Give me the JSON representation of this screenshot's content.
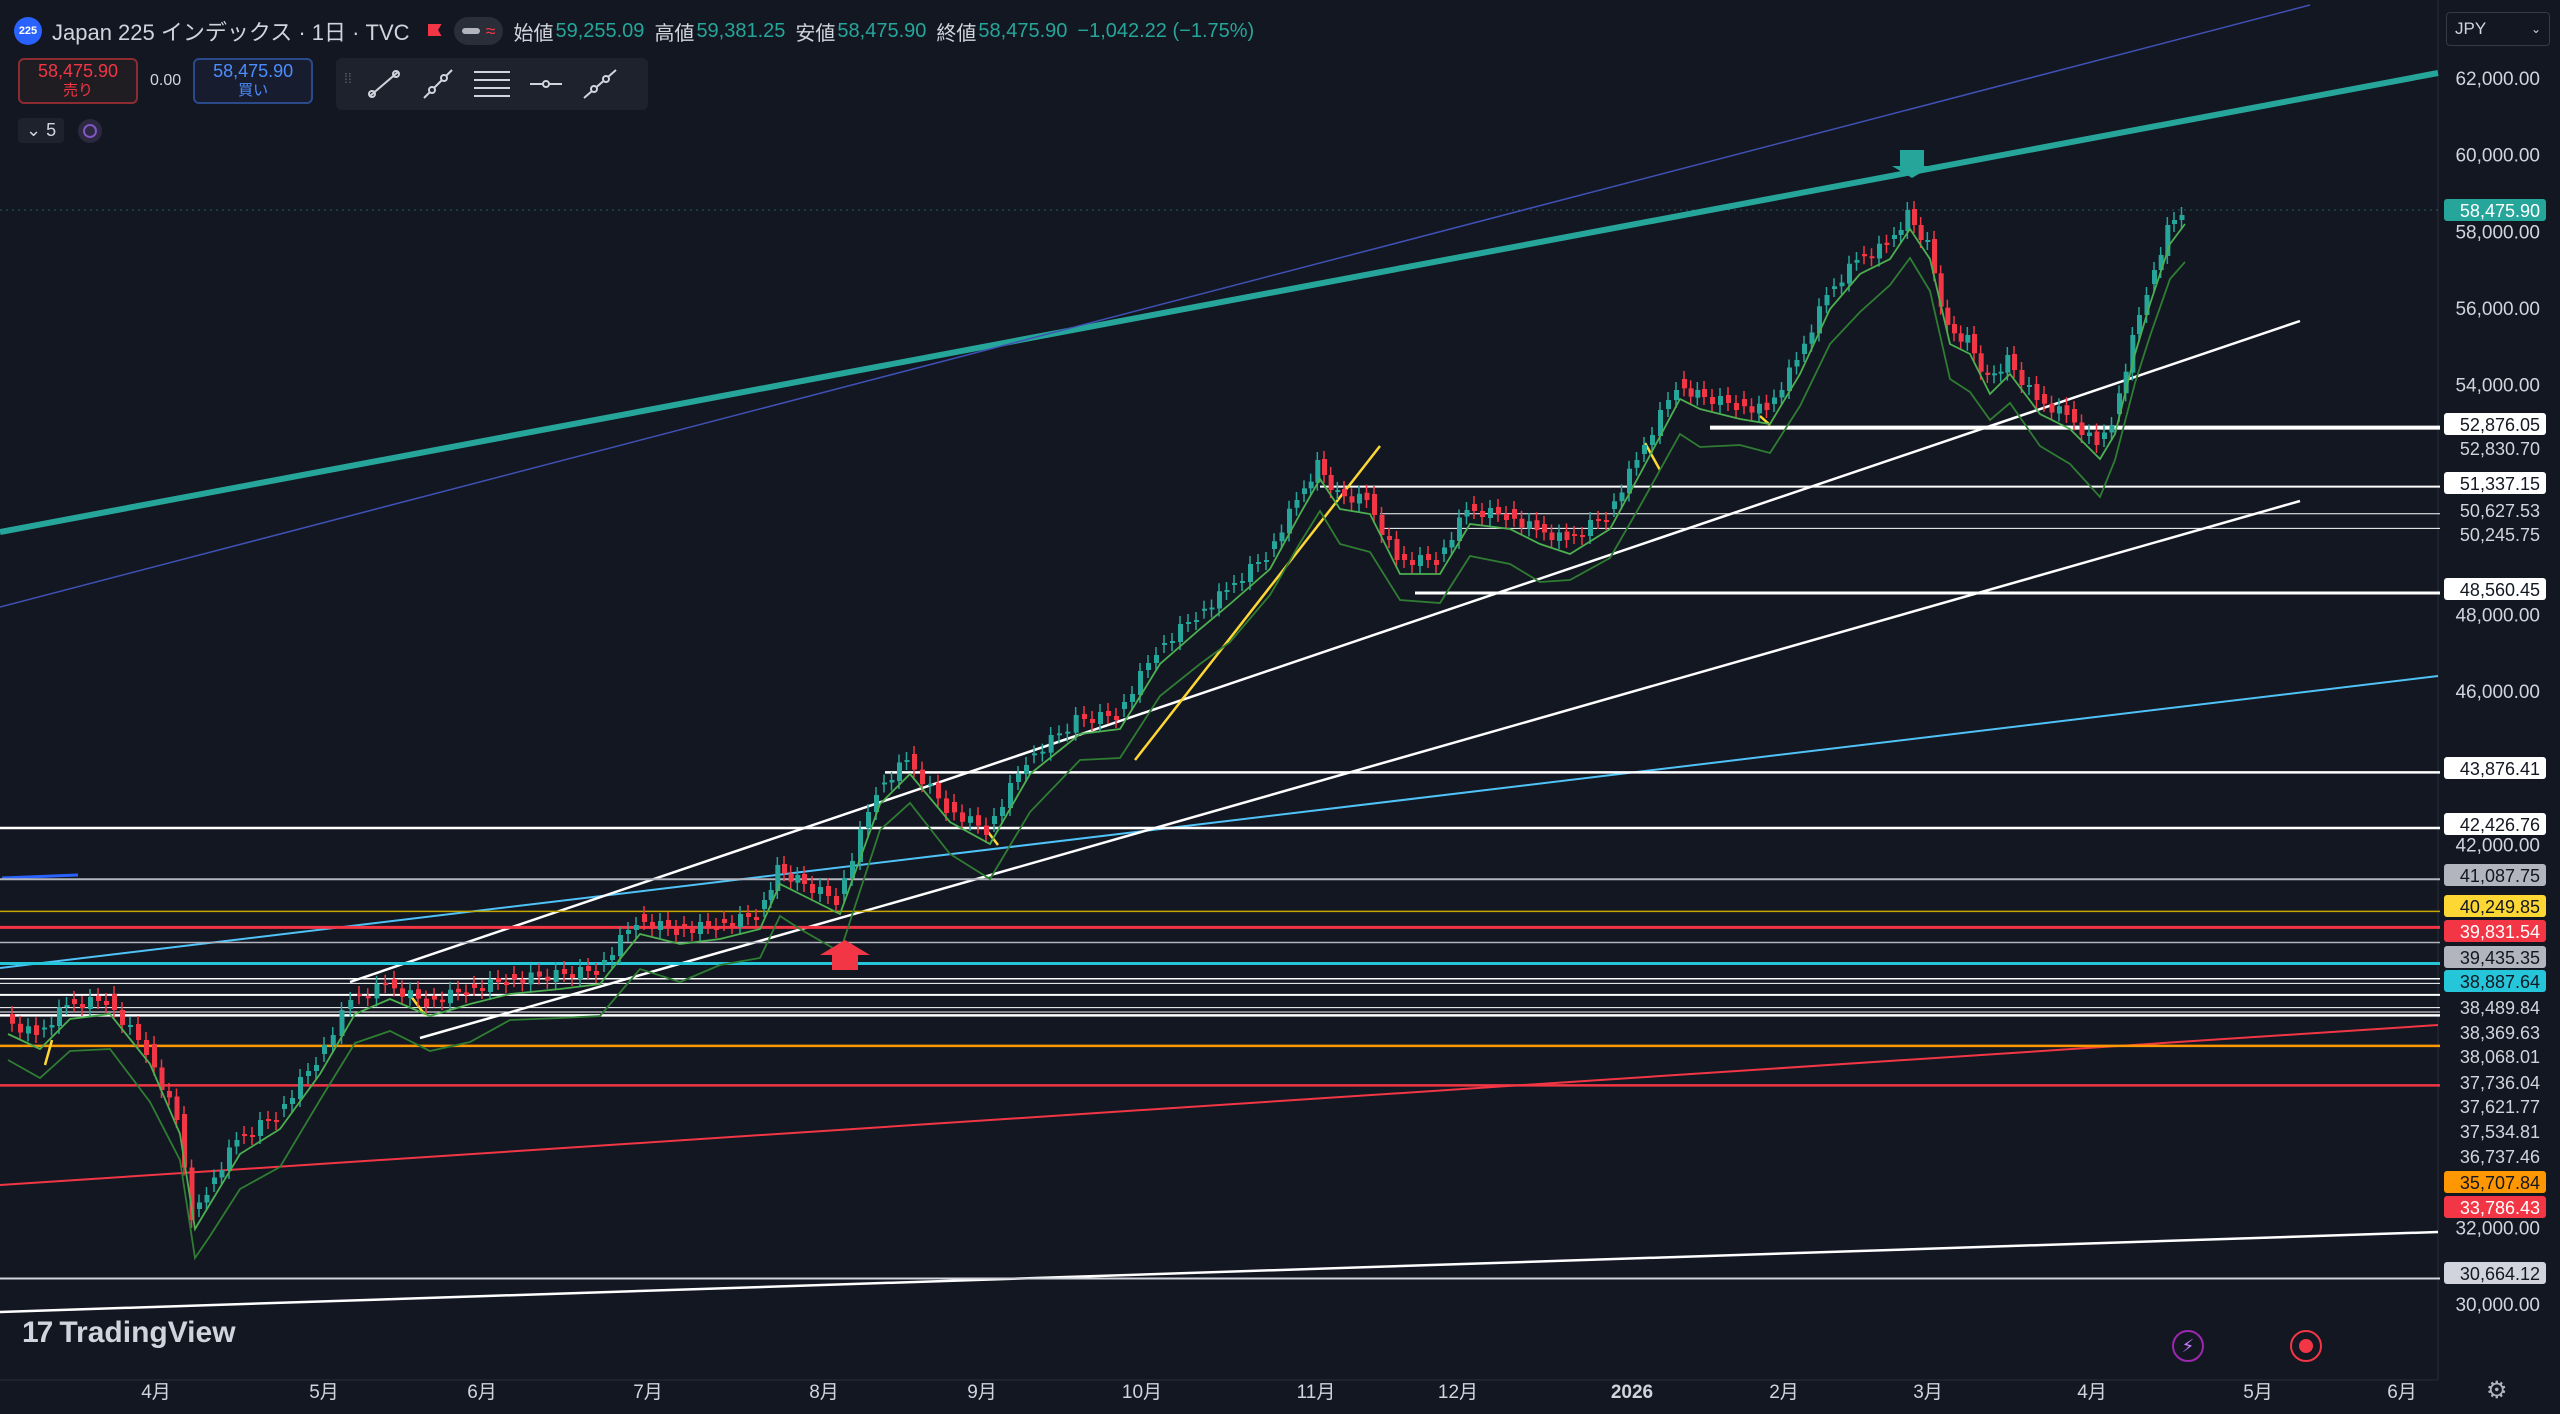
{
  "header": {
    "symbol_badge": "225",
    "title": "Japan 225 インデックス · 1日 · TVC",
    "open_label": "始値",
    "open": "59,255.09",
    "high_label": "高値",
    "high": "59,381.25",
    "low_label": "安値",
    "low": "58,475.90",
    "close_label": "終値",
    "close": "58,475.90",
    "change": "−1,042.22 (−1.75%)",
    "change_color": "#26a69a"
  },
  "trade": {
    "sell_price": "58,475.90",
    "sell_label": "売り",
    "spread": "0.00",
    "buy_price": "58,475.90",
    "buy_label": "買い"
  },
  "toolbar": {
    "tools": [
      "trend-line-icon",
      "ray-icon",
      "fib-retracement-icon",
      "horizontal-line-icon",
      "extended-line-icon"
    ]
  },
  "indicators": {
    "count": "5"
  },
  "currency": {
    "value": "JPY"
  },
  "price_axis": {
    "ticks": [
      "62,000.00",
      "60,000.00",
      "58,000.00",
      "56,000.00",
      "54,000.00",
      "48,000.00",
      "46,000.00",
      "42,000.00",
      "32,000.00",
      "30,000.00"
    ]
  },
  "price_labels": [
    {
      "value": "58,475.90",
      "bg": "#26a69a",
      "fg": "#ffffff"
    },
    {
      "value": "52,876.05",
      "bg": "#ffffff",
      "fg": "#131722"
    },
    {
      "value": "52,830.70",
      "bg": "#131722",
      "fg": "#d1d4dc"
    },
    {
      "value": "51,337.15",
      "bg": "#ffffff",
      "fg": "#131722"
    },
    {
      "value": "50,627.53",
      "bg": "#131722",
      "fg": "#d1d4dc"
    },
    {
      "value": "50,245.75",
      "bg": "#131722",
      "fg": "#d1d4dc"
    },
    {
      "value": "48,560.45",
      "bg": "#ffffff",
      "fg": "#131722"
    },
    {
      "value": "43,876.41",
      "bg": "#ffffff",
      "fg": "#131722"
    },
    {
      "value": "42,426.76",
      "bg": "#ffffff",
      "fg": "#131722"
    },
    {
      "value": "41,087.75",
      "bg": "#b2b5be",
      "fg": "#131722"
    },
    {
      "value": "40,249.85",
      "bg": "#fdd835",
      "fg": "#131722"
    },
    {
      "value": "39,831.54",
      "bg": "#f23645",
      "fg": "#ffffff"
    },
    {
      "value": "39,435.35",
      "bg": "#b2b5be",
      "fg": "#131722"
    },
    {
      "value": "38,887.64",
      "bg": "#26c6da",
      "fg": "#131722"
    },
    {
      "value": "38,489.84",
      "bg": "#131722",
      "fg": "#d1d4dc"
    },
    {
      "value": "38,369.63",
      "bg": "#131722",
      "fg": "#d1d4dc"
    },
    {
      "value": "38,068.01",
      "bg": "#131722",
      "fg": "#d1d4dc"
    },
    {
      "value": "37,736.04",
      "bg": "#131722",
      "fg": "#d1d4dc"
    },
    {
      "value": "37,621.77",
      "bg": "#131722",
      "fg": "#d1d4dc"
    },
    {
      "value": "37,534.81",
      "bg": "#131722",
      "fg": "#d1d4dc"
    },
    {
      "value": "36,737.46",
      "bg": "#131722",
      "fg": "#d1d4dc"
    },
    {
      "value": "35,707.84",
      "bg": "#ff9800",
      "fg": "#131722"
    },
    {
      "value": "33,786.43",
      "bg": "#f23645",
      "fg": "#ffffff"
    },
    {
      "value": "30,664.12",
      "bg": "#d1d4dc",
      "fg": "#131722"
    }
  ],
  "time_axis": {
    "labels": [
      "4月",
      "5月",
      "6月",
      "7月",
      "8月",
      "9月",
      "10月",
      "11月",
      "12月",
      "2026",
      "2月",
      "3月",
      "4月",
      "5月",
      "6月"
    ]
  },
  "branding": {
    "name": "TradingView"
  },
  "colors": {
    "background": "#131722",
    "up": "#26a69a",
    "down": "#f23645",
    "ma": "#4caf50"
  }
}
